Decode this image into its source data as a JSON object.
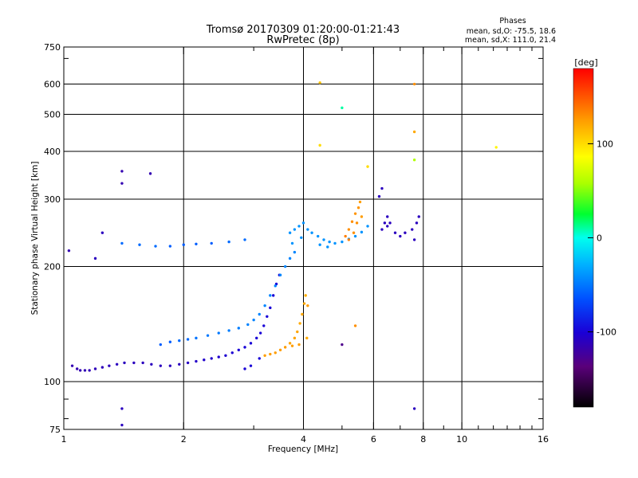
{
  "chart_data": {
    "type": "scatter",
    "title": "Tromsø 20170309 01:20:00-01:21:43",
    "subtitle": "RwPretec (8p)",
    "xlabel": "Frequency [MHz]",
    "ylabel": "Stationary phase Virtual Height [km]",
    "x_scale": "log",
    "y_scale": "log",
    "xlim": [
      1,
      16
    ],
    "ylim": [
      75,
      750
    ],
    "x_ticks": [
      1,
      2,
      4,
      6,
      8,
      10,
      16
    ],
    "x_tick_labels": [
      "1",
      "2",
      "4",
      "6",
      "8",
      "10",
      "16"
    ],
    "y_ticks": [
      75,
      100,
      200,
      300,
      400,
      500,
      600,
      750
    ],
    "y_tick_labels": [
      "75",
      "100",
      "200",
      "300",
      "400",
      "500",
      "600",
      "750"
    ],
    "grid": true,
    "phases_box": {
      "heading": "Phases",
      "line_o": "mean, sd,O: -75.5, 18.6",
      "line_x": "mean, sd,X: 111.0, 21.4"
    },
    "colorbar": {
      "unit": "[deg]",
      "range": [
        -180,
        180
      ],
      "ticks": [
        -100,
        0,
        100
      ],
      "tick_labels": [
        "-100",
        "0",
        "100"
      ],
      "colormap": "rainbow"
    },
    "series": [
      {
        "trace": "F-layer low-frequency trace",
        "points": [
          [
            1.05,
            110,
            -115
          ],
          [
            1.08,
            108,
            -115
          ],
          [
            1.1,
            107,
            -115
          ],
          [
            1.13,
            107,
            -114
          ],
          [
            1.16,
            107,
            -113
          ],
          [
            1.2,
            108,
            -112
          ],
          [
            1.25,
            109,
            -112
          ],
          [
            1.3,
            110,
            -111
          ],
          [
            1.36,
            111,
            -110
          ],
          [
            1.42,
            112,
            -110
          ],
          [
            1.5,
            112,
            -110
          ],
          [
            1.58,
            112,
            -110
          ],
          [
            1.66,
            111,
            -110
          ],
          [
            1.75,
            110,
            -110
          ],
          [
            1.85,
            110,
            -110
          ],
          [
            1.95,
            111,
            -110
          ],
          [
            2.05,
            112,
            -108
          ],
          [
            2.15,
            113,
            -106
          ],
          [
            2.25,
            114,
            -105
          ],
          [
            2.35,
            115,
            -105
          ],
          [
            2.45,
            116,
            -104
          ],
          [
            2.55,
            117,
            -103
          ],
          [
            2.65,
            119,
            -102
          ],
          [
            2.75,
            121,
            -101
          ],
          [
            2.85,
            123,
            -100
          ],
          [
            2.95,
            126,
            -100
          ],
          [
            3.05,
            130,
            -100
          ],
          [
            3.12,
            134,
            -100
          ],
          [
            3.18,
            140,
            -100
          ],
          [
            3.24,
            148,
            -100
          ],
          [
            3.3,
            156,
            -100
          ],
          [
            3.36,
            168,
            -100
          ],
          [
            3.42,
            180,
            -100
          ],
          [
            3.48,
            190,
            -100
          ],
          [
            2.95,
            110,
            -100
          ],
          [
            2.85,
            108,
            -100
          ],
          [
            3.1,
            115,
            -100
          ]
        ]
      },
      {
        "trace": "Lower sky-blue band",
        "points": [
          [
            1.95,
            128,
            -55
          ],
          [
            2.05,
            129,
            -55
          ],
          [
            2.15,
            130,
            -52
          ],
          [
            2.3,
            132,
            -50
          ],
          [
            2.45,
            134,
            -50
          ],
          [
            2.6,
            136,
            -48
          ],
          [
            2.75,
            138,
            -48
          ],
          [
            2.9,
            141,
            -46
          ],
          [
            3.0,
            145,
            -46
          ],
          [
            3.1,
            150,
            -45
          ],
          [
            3.2,
            158,
            -45
          ],
          [
            3.3,
            168,
            -45
          ],
          [
            3.4,
            178,
            -45
          ],
          [
            3.5,
            190,
            -45
          ],
          [
            3.6,
            200,
            -45
          ],
          [
            3.7,
            210,
            -45
          ],
          [
            3.8,
            218,
            -45
          ],
          [
            1.85,
            127,
            -60
          ],
          [
            1.75,
            125,
            -60
          ]
        ]
      },
      {
        "trace": "Orange X-mode trace",
        "points": [
          [
            3.2,
            117,
            125
          ],
          [
            3.3,
            118,
            125
          ],
          [
            3.4,
            119,
            125
          ],
          [
            3.5,
            121,
            125
          ],
          [
            3.6,
            123,
            125
          ],
          [
            3.7,
            126,
            122
          ],
          [
            3.8,
            130,
            122
          ],
          [
            3.86,
            135,
            122
          ],
          [
            3.92,
            142,
            120
          ],
          [
            3.97,
            150,
            120
          ],
          [
            4.02,
            160,
            120
          ],
          [
            4.05,
            168,
            118
          ],
          [
            3.9,
            125,
            125
          ],
          [
            3.75,
            124,
            125
          ],
          [
            4.08,
            130,
            120
          ]
        ]
      },
      {
        "trace": "Mid-level horizontal points",
        "points": [
          [
            1.4,
            230,
            -55
          ],
          [
            1.55,
            228,
            -55
          ],
          [
            1.7,
            226,
            -55
          ],
          [
            1.85,
            226,
            -60
          ],
          [
            2.0,
            228,
            -60
          ],
          [
            2.15,
            229,
            -60
          ],
          [
            2.35,
            230,
            -60
          ],
          [
            2.6,
            232,
            -55
          ],
          [
            2.85,
            235,
            -55
          ],
          [
            1.25,
            245,
            -110
          ],
          [
            1.2,
            210,
            -110
          ],
          [
            1.03,
            220,
            -115
          ],
          [
            1.65,
            350,
            -115
          ],
          [
            1.4,
            355,
            -115
          ],
          [
            1.4,
            330,
            -115
          ]
        ]
      },
      {
        "trace": "Upper F2 cluster",
        "points": [
          [
            3.7,
            245,
            -40
          ],
          [
            3.8,
            250,
            -40
          ],
          [
            3.9,
            255,
            -40
          ],
          [
            4.0,
            260,
            -40
          ],
          [
            4.1,
            250,
            -40
          ],
          [
            4.2,
            245,
            -40
          ],
          [
            4.35,
            240,
            -40
          ],
          [
            4.5,
            235,
            -40
          ],
          [
            4.65,
            232,
            -40
          ],
          [
            4.8,
            230,
            -40
          ],
          [
            5.0,
            232,
            -40
          ],
          [
            5.2,
            236,
            -40
          ],
          [
            5.4,
            240,
            -40
          ],
          [
            5.6,
            246,
            -40
          ],
          [
            5.8,
            255,
            -40
          ],
          [
            4.4,
            228,
            -40
          ],
          [
            4.6,
            225,
            -40
          ],
          [
            3.75,
            230,
            -40
          ],
          [
            3.95,
            238,
            -40
          ]
        ]
      },
      {
        "trace": "Orange F2 patch",
        "points": [
          [
            5.2,
            250,
            130
          ],
          [
            5.3,
            262,
            130
          ],
          [
            5.4,
            275,
            128
          ],
          [
            5.5,
            285,
            128
          ],
          [
            5.55,
            295,
            125
          ],
          [
            5.35,
            245,
            130
          ],
          [
            5.45,
            260,
            130
          ],
          [
            5.6,
            270,
            125
          ],
          [
            5.2,
            235,
            135
          ],
          [
            5.1,
            240,
            135
          ]
        ]
      },
      {
        "trace": "High-frequency blue traces",
        "points": [
          [
            6.3,
            250,
            -110
          ],
          [
            6.4,
            260,
            -110
          ],
          [
            6.5,
            270,
            -110
          ],
          [
            6.6,
            260,
            -110
          ],
          [
            6.8,
            245,
            -110
          ],
          [
            7.0,
            240,
            -110
          ],
          [
            7.2,
            245,
            -110
          ],
          [
            7.5,
            250,
            -110
          ],
          [
            7.7,
            260,
            -110
          ],
          [
            7.8,
            270,
            -110
          ],
          [
            6.2,
            305,
            -110
          ],
          [
            6.3,
            320,
            -110
          ],
          [
            6.5,
            255,
            -110
          ],
          [
            7.6,
            235,
            -110
          ]
        ]
      },
      {
        "trace": "Sparse outliers",
        "points": [
          [
            4.4,
            605,
            110
          ],
          [
            7.6,
            600,
            130
          ],
          [
            5.0,
            520,
            10
          ],
          [
            4.4,
            415,
            100
          ],
          [
            7.6,
            450,
            120
          ],
          [
            7.6,
            380,
            60
          ],
          [
            5.8,
            365,
            100
          ],
          [
            12.2,
            410,
            90
          ],
          [
            7.6,
            85,
            -110
          ],
          [
            1.4,
            85,
            -110
          ],
          [
            1.4,
            77,
            -110
          ],
          [
            4.1,
            158,
            125
          ],
          [
            5.4,
            140,
            130
          ],
          [
            5.0,
            125,
            -130
          ]
        ]
      }
    ]
  }
}
